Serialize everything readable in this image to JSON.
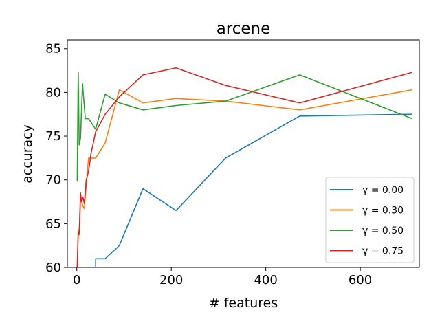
{
  "chart_data": {
    "type": "line",
    "title": "arcene",
    "xlabel": "# features",
    "ylabel": "accuracy",
    "xlim": [
      -20,
      725
    ],
    "ylim": [
      60,
      86
    ],
    "xticks": [
      0,
      200,
      400,
      600
    ],
    "yticks": [
      60,
      65,
      70,
      75,
      80,
      85
    ],
    "grid": false,
    "legend_position": "lower-right",
    "series": [
      {
        "name": "γ = 0.00",
        "color": "#1f77b4",
        "x": [
          40,
          60,
          90,
          140,
          210,
          315,
          472,
          710
        ],
        "y": [
          61.0,
          61.0,
          62.5,
          69.0,
          66.5,
          72.5,
          77.3,
          77.5
        ],
        "drop_to_floor_x": 40
      },
      {
        "name": "γ = 0.30",
        "color": "#ff7f0e",
        "x": [
          1,
          3,
          5,
          8,
          10,
          13,
          16,
          20,
          25,
          30,
          40,
          60,
          90,
          140,
          210,
          315,
          472,
          710
        ],
        "y": [
          60.0,
          64.3,
          63.7,
          68.3,
          67.5,
          67.0,
          66.7,
          69.5,
          72.5,
          72.5,
          72.5,
          74.2,
          80.3,
          78.8,
          79.3,
          79.0,
          78.0,
          80.3
        ]
      },
      {
        "name": "γ = 0.50",
        "color": "#2ca02c",
        "x": [
          1,
          3,
          5,
          8,
          12,
          18,
          25,
          40,
          60,
          90,
          140,
          210,
          315,
          472,
          710
        ],
        "y": [
          69.8,
          82.3,
          74.0,
          74.8,
          81.0,
          77.0,
          77.0,
          75.8,
          79.8,
          78.8,
          78.0,
          78.5,
          79.0,
          82.0,
          77.0
        ]
      },
      {
        "name": "γ = 0.75",
        "color": "#d62728",
        "x": [
          1,
          3,
          5,
          8,
          10,
          13,
          16,
          20,
          25,
          30,
          40,
          60,
          90,
          140,
          210,
          315,
          472,
          710
        ],
        "y": [
          60.0,
          64.0,
          63.8,
          68.5,
          67.5,
          68.0,
          67.3,
          70.0,
          71.0,
          73.0,
          75.5,
          77.5,
          79.5,
          82.0,
          82.8,
          80.8,
          78.8,
          82.3
        ]
      }
    ]
  }
}
